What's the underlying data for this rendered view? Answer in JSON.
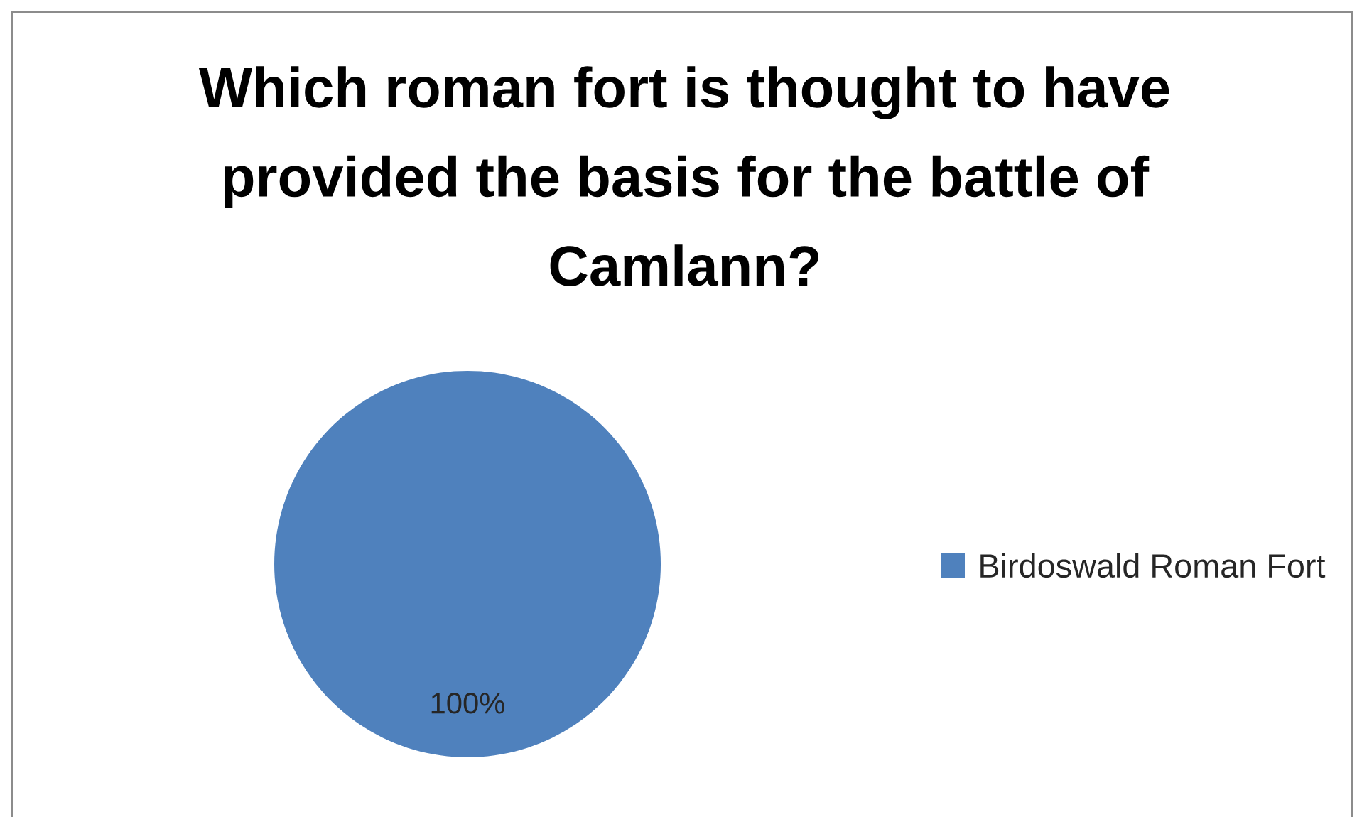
{
  "chart_data": {
    "type": "pie",
    "title": "Which roman fort is thought to have provided the basis for the battle of Camlann?",
    "categories": [
      "Birdoswald Roman Fort"
    ],
    "values": [
      100
    ],
    "colors": [
      "#4f81bd"
    ],
    "value_labels": [
      "100%"
    ],
    "legend": "right"
  }
}
